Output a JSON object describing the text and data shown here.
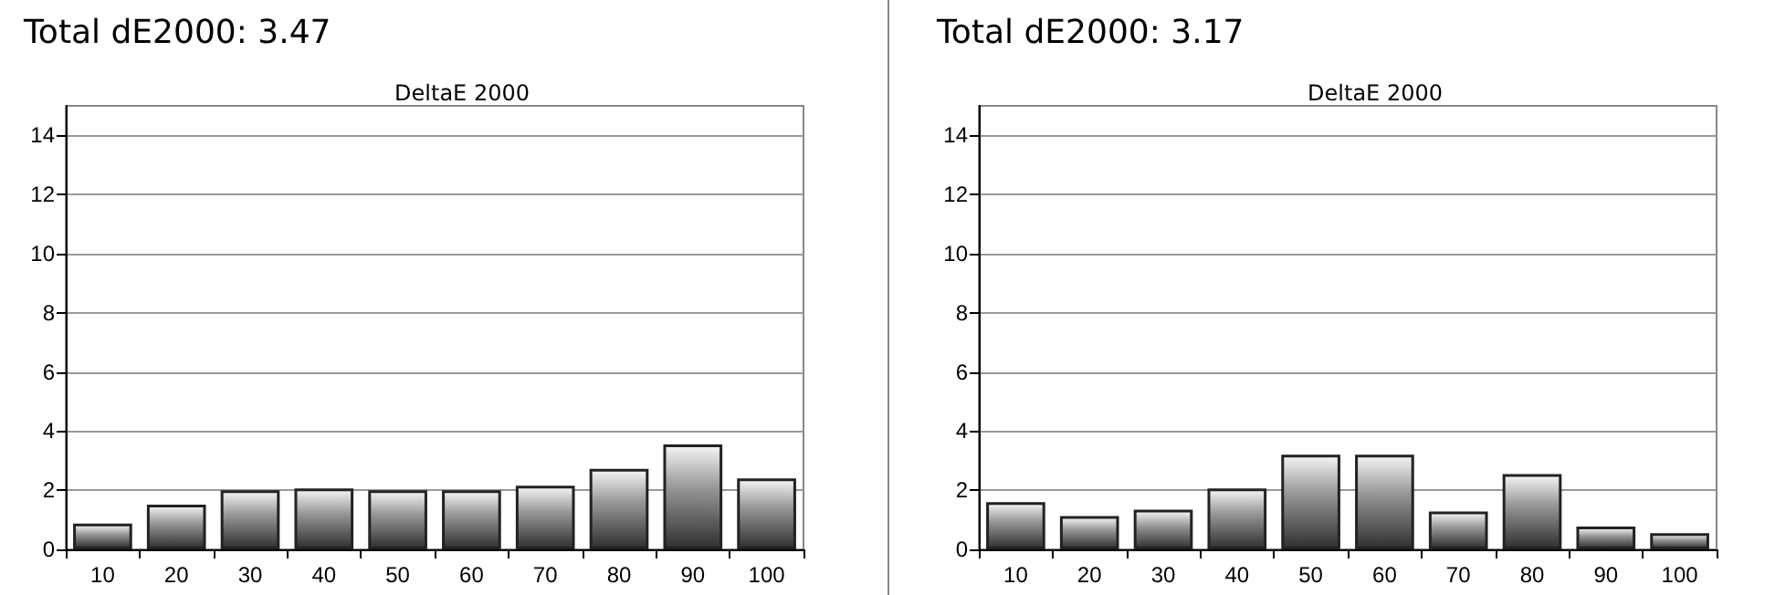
{
  "chart_data": [
    {
      "type": "bar",
      "title": "Total dE2000: 3.47",
      "subtitle": "DeltaE 2000",
      "categories": [
        "10",
        "20",
        "30",
        "40",
        "50",
        "60",
        "70",
        "80",
        "90",
        "100"
      ],
      "values": [
        0.87,
        1.51,
        2.0,
        2.06,
        2.0,
        2.0,
        2.15,
        2.72,
        3.55,
        2.4
      ],
      "color": "#303030",
      "ylim": [
        0,
        15
      ],
      "yticks": [
        0,
        2,
        4,
        6,
        8,
        10,
        12,
        14
      ],
      "grid": "y"
    },
    {
      "type": "bar",
      "title": "Total dE2000: 3.17",
      "subtitle": "DeltaE 2000",
      "categories": [
        "10",
        "20",
        "30",
        "40",
        "50",
        "60",
        "70",
        "80",
        "90",
        "100"
      ],
      "values": [
        1.6,
        1.13,
        1.34,
        2.06,
        3.2,
        3.2,
        1.28,
        2.55,
        0.77,
        0.55
      ],
      "color": "#303030",
      "ylim": [
        0,
        15
      ],
      "yticks": [
        0,
        2,
        4,
        6,
        8,
        10,
        12,
        14
      ],
      "grid": "y"
    }
  ]
}
